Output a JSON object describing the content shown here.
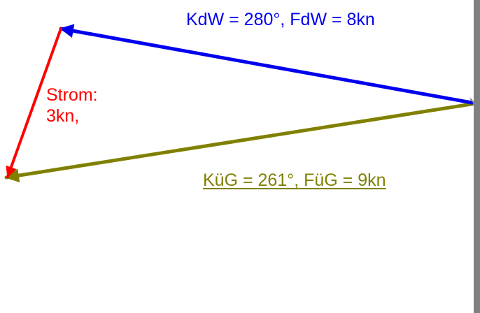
{
  "labels": {
    "course_through_water": "KdW = 280°, FdW = 8kn",
    "current_line1": "Strom:",
    "current_line2": "3kn,",
    "course_over_ground": "KüG = 261°, FüG = 9kn"
  },
  "colors": {
    "course_through_water": "#0000ee",
    "current": "#ff0000",
    "course_over_ground": "#808000",
    "border": "#808080"
  }
}
